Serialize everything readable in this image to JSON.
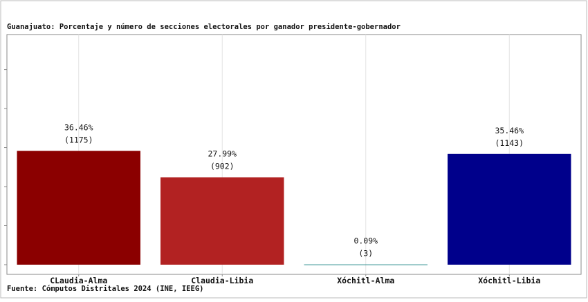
{
  "chart_data": {
    "type": "bar",
    "title": "Guanajuato: Porcentaje y número de secciones electorales por ganador presidente-gobernador",
    "source": "Fuente: Cómputos Distritales 2024 (INE, IEEG)",
    "categories": [
      "CLaudia-Alma",
      "Claudia-Libia",
      "Xóchitl-Alma",
      "Xóchitl-Libia"
    ],
    "values": [
      36.46,
      27.99,
      0.09,
      35.46
    ],
    "value_labels": [
      "36.46%",
      "27.99%",
      "0.09%",
      "35.46%"
    ],
    "count_labels": [
      "(1175)",
      "(902)",
      "(3)",
      "(1143)"
    ],
    "colors": [
      "#8b0000",
      "#b22222",
      "#2f8f8f",
      "#00008b"
    ],
    "ylim": [
      -3.1,
      73.7
    ],
    "yticks": [
      0,
      12.5,
      25,
      37.5,
      50,
      62.5
    ],
    "grid": true
  }
}
